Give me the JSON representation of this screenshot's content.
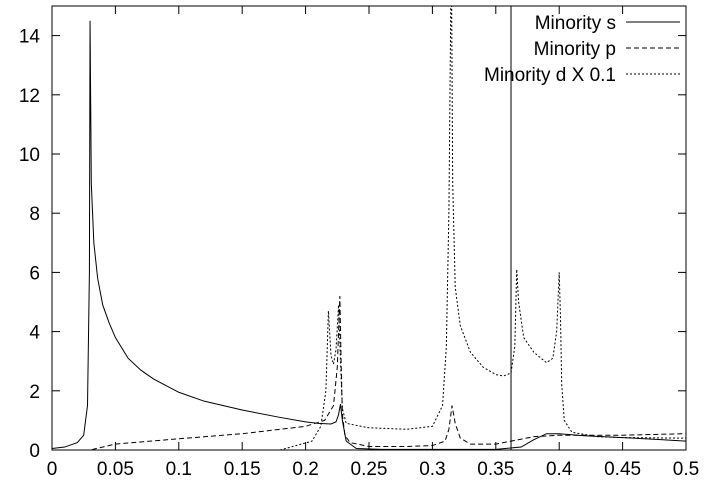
{
  "chart_data": {
    "type": "line",
    "title": "",
    "xlabel": "",
    "ylabel": "",
    "xlim": [
      0,
      0.5
    ],
    "ylim": [
      0,
      15
    ],
    "xticks": [
      0,
      0.05,
      0.1,
      0.15,
      0.2,
      0.25,
      0.3,
      0.35,
      0.4,
      0.45,
      0.5
    ],
    "xtick_labels": [
      "0",
      "0.05",
      "0.1",
      "0.15",
      "0.2",
      "0.25",
      "0.3",
      "0.35",
      "0.4",
      "0.45",
      "0.5"
    ],
    "yticks": [
      0,
      2,
      4,
      6,
      8,
      10,
      12,
      14
    ],
    "ytick_labels": [
      "0",
      "2",
      "4",
      "6",
      "8",
      "10",
      "12",
      "14"
    ],
    "grid": false,
    "legend_position": "top-right",
    "vertical_line_x": 0.362,
    "series": [
      {
        "name": "Minority s",
        "dash": "solid",
        "x": [
          0,
          0.01,
          0.02,
          0.025,
          0.028,
          0.0295,
          0.03,
          0.031,
          0.033,
          0.036,
          0.04,
          0.045,
          0.05,
          0.06,
          0.07,
          0.08,
          0.1,
          0.12,
          0.15,
          0.18,
          0.2,
          0.21,
          0.22,
          0.224,
          0.226,
          0.2275,
          0.229,
          0.232,
          0.24,
          0.26,
          0.3,
          0.35,
          0.37,
          0.38,
          0.39,
          0.4,
          0.42,
          0.45,
          0.48,
          0.5
        ],
        "y": [
          0.05,
          0.1,
          0.25,
          0.5,
          1.5,
          6,
          14.5,
          9,
          7,
          5.8,
          4.9,
          4.3,
          3.8,
          3.1,
          2.7,
          2.4,
          1.95,
          1.65,
          1.35,
          1.1,
          0.95,
          0.9,
          0.88,
          0.95,
          1.2,
          1.55,
          1.0,
          0.3,
          0.05,
          0.02,
          0.02,
          0.02,
          0.1,
          0.35,
          0.55,
          0.55,
          0.48,
          0.42,
          0.35,
          0.3
        ]
      },
      {
        "name": "Minority p",
        "dash": "dashed",
        "x": [
          0,
          0.02,
          0.03,
          0.035,
          0.05,
          0.1,
          0.15,
          0.2,
          0.215,
          0.222,
          0.225,
          0.227,
          0.228,
          0.229,
          0.231,
          0.235,
          0.25,
          0.28,
          0.3,
          0.31,
          0.313,
          0.3155,
          0.318,
          0.322,
          0.33,
          0.35,
          0.362,
          0.38,
          0.4,
          0.45,
          0.5
        ],
        "y": [
          0,
          0,
          0,
          0.05,
          0.2,
          0.38,
          0.55,
          0.8,
          1.0,
          1.5,
          2.8,
          5.2,
          3.0,
          1.2,
          0.5,
          0.25,
          0.12,
          0.12,
          0.15,
          0.3,
          0.7,
          1.5,
          0.9,
          0.4,
          0.2,
          0.2,
          0.3,
          0.45,
          0.5,
          0.5,
          0.55
        ]
      },
      {
        "name": "Minority d X 0.1",
        "dash": "dotted",
        "x": [
          0,
          0.1,
          0.18,
          0.205,
          0.212,
          0.216,
          0.218,
          0.22,
          0.222,
          0.224,
          0.226,
          0.2275,
          0.229,
          0.232,
          0.25,
          0.28,
          0.3,
          0.308,
          0.311,
          0.313,
          0.3145,
          0.3152,
          0.316,
          0.318,
          0.322,
          0.33,
          0.34,
          0.35,
          0.356,
          0.362,
          0.365,
          0.3665,
          0.368,
          0.372,
          0.38,
          0.39,
          0.395,
          0.398,
          0.4,
          0.401,
          0.402,
          0.404,
          0.41,
          0.43,
          0.45,
          0.5
        ],
        "y": [
          0,
          0,
          0,
          0.3,
          0.8,
          2.0,
          4.7,
          3.2,
          2.9,
          3.4,
          4.9,
          3.0,
          1.4,
          0.9,
          0.75,
          0.7,
          0.8,
          1.5,
          3.5,
          8.0,
          15.0,
          15.0,
          9.0,
          5.5,
          4.2,
          3.3,
          2.8,
          2.55,
          2.5,
          2.6,
          3.5,
          6.1,
          5.0,
          3.8,
          3.3,
          2.95,
          3.1,
          4.0,
          6.0,
          4.5,
          2.2,
          1.0,
          0.6,
          0.45,
          0.42,
          0.4
        ]
      }
    ]
  }
}
